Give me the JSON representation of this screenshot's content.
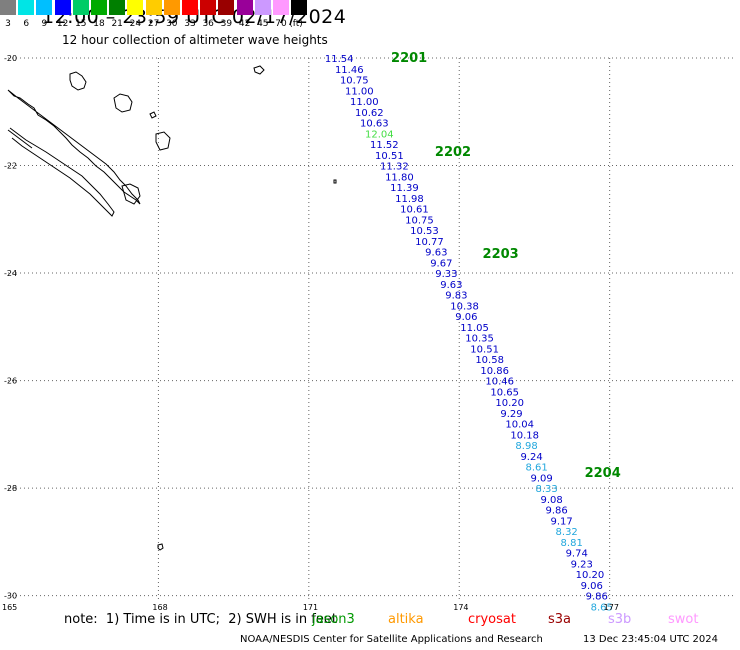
{
  "header": {
    "title": "12:00 – 23:59 UTC 02/17/2024",
    "subtitle": "12 hour collection of altimeter wave heights"
  },
  "color_scale": {
    "unit": "(ft)",
    "bins": [
      {
        "label": "3",
        "color": "#7f7f7f"
      },
      {
        "label": "6",
        "color": "#00e5e5"
      },
      {
        "label": "9",
        "color": "#00bfff"
      },
      {
        "label": "12",
        "color": "#0000ff"
      },
      {
        "label": "15",
        "color": "#00cc66"
      },
      {
        "label": "18",
        "color": "#00aa00"
      },
      {
        "label": "21",
        "color": "#007f00"
      },
      {
        "label": "24",
        "color": "#ffff00"
      },
      {
        "label": "27",
        "color": "#ffcc00"
      },
      {
        "label": "30",
        "color": "#ff9900"
      },
      {
        "label": "33",
        "color": "#ff0000"
      },
      {
        "label": "36",
        "color": "#cc0000"
      },
      {
        "label": "39",
        "color": "#990000"
      },
      {
        "label": "42",
        "color": "#990099"
      },
      {
        "label": "45",
        "color": "#cc99ff"
      },
      {
        "label": "70",
        "color": "#ff99ff"
      },
      {
        "label": "",
        "color": "#000000"
      }
    ]
  },
  "axes": {
    "lat_ticks": [
      "-20",
      "-22",
      "-24",
      "-26",
      "-28",
      "-30"
    ],
    "lon_ticks": [
      "165",
      "168",
      "171",
      "174",
      "177"
    ],
    "lon_range": [
      165,
      179.5
    ],
    "lat_range": [
      -20,
      -30.1
    ],
    "grid": true
  },
  "track": {
    "passes": [
      {
        "label": "2201",
        "lat": -20.0
      },
      {
        "label": "2202",
        "lat": -21.75
      },
      {
        "label": "2203",
        "lat": -23.65
      },
      {
        "label": "2204",
        "lat": -27.72
      }
    ],
    "points": [
      {
        "v": "11.54",
        "lon": 171.6,
        "lat": -20.0
      },
      {
        "v": "11.46",
        "lon": 171.8,
        "lat": -20.2
      },
      {
        "v": "10.75",
        "lon": 171.9,
        "lat": -20.4
      },
      {
        "v": "11.00",
        "lon": 172.0,
        "lat": -20.6
      },
      {
        "v": "11.00",
        "lon": 172.1,
        "lat": -20.8
      },
      {
        "v": "10.62",
        "lon": 172.2,
        "lat": -21.0
      },
      {
        "v": "10.63",
        "lon": 172.3,
        "lat": -21.2
      },
      {
        "v": "12.04",
        "lon": 172.4,
        "lat": -21.4
      },
      {
        "v": "11.52",
        "lon": 172.5,
        "lat": -21.6
      },
      {
        "v": "10.51",
        "lon": 172.6,
        "lat": -21.8
      },
      {
        "v": "11.32",
        "lon": 172.7,
        "lat": -22.0
      },
      {
        "v": "11.80",
        "lon": 172.8,
        "lat": -22.2
      },
      {
        "v": "11.39",
        "lon": 172.9,
        "lat": -22.4
      },
      {
        "v": "11.98",
        "lon": 173.0,
        "lat": -22.6
      },
      {
        "v": "10.61",
        "lon": 173.1,
        "lat": -22.8
      },
      {
        "v": "10.75",
        "lon": 173.2,
        "lat": -23.0
      },
      {
        "v": "10.53",
        "lon": 173.3,
        "lat": -23.2
      },
      {
        "v": "10.77",
        "lon": 173.4,
        "lat": -23.4
      },
      {
        "v": "9.63",
        "lon": 173.6,
        "lat": -23.6
      },
      {
        "v": "9.67",
        "lon": 173.7,
        "lat": -23.8
      },
      {
        "v": "9.33",
        "lon": 173.8,
        "lat": -24.0
      },
      {
        "v": "9.63",
        "lon": 173.9,
        "lat": -24.2
      },
      {
        "v": "9.83",
        "lon": 174.0,
        "lat": -24.4
      },
      {
        "v": "10.38",
        "lon": 174.1,
        "lat": -24.6
      },
      {
        "v": "9.06",
        "lon": 174.2,
        "lat": -24.8
      },
      {
        "v": "11.05",
        "lon": 174.3,
        "lat": -25.0
      },
      {
        "v": "10.35",
        "lon": 174.4,
        "lat": -25.2
      },
      {
        "v": "10.51",
        "lon": 174.5,
        "lat": -25.4
      },
      {
        "v": "10.58",
        "lon": 174.6,
        "lat": -25.6
      },
      {
        "v": "10.86",
        "lon": 174.7,
        "lat": -25.8
      },
      {
        "v": "10.46",
        "lon": 174.8,
        "lat": -26.0
      },
      {
        "v": "10.65",
        "lon": 174.9,
        "lat": -26.2
      },
      {
        "v": "10.20",
        "lon": 175.0,
        "lat": -26.4
      },
      {
        "v": "9.29",
        "lon": 175.1,
        "lat": -26.6
      },
      {
        "v": "10.04",
        "lon": 175.2,
        "lat": -26.8
      },
      {
        "v": "10.18",
        "lon": 175.3,
        "lat": -27.0
      },
      {
        "v": "8.98",
        "lon": 175.4,
        "lat": -27.2
      },
      {
        "v": "9.24",
        "lon": 175.5,
        "lat": -27.4
      },
      {
        "v": "8.61",
        "lon": 175.6,
        "lat": -27.6
      },
      {
        "v": "9.09",
        "lon": 175.7,
        "lat": -27.8
      },
      {
        "v": "8.33",
        "lon": 175.8,
        "lat": -28.0
      },
      {
        "v": "9.08",
        "lon": 175.9,
        "lat": -28.2
      },
      {
        "v": "9.86",
        "lon": 176.0,
        "lat": -28.4
      },
      {
        "v": "9.17",
        "lon": 176.1,
        "lat": -28.6
      },
      {
        "v": "8.32",
        "lon": 176.2,
        "lat": -28.8
      },
      {
        "v": "8.81",
        "lon": 176.3,
        "lat": -29.0
      },
      {
        "v": "9.74",
        "lon": 176.4,
        "lat": -29.2
      },
      {
        "v": "9.23",
        "lon": 176.5,
        "lat": -29.4
      },
      {
        "v": "10.20",
        "lon": 176.6,
        "lat": -29.6
      },
      {
        "v": "9.06",
        "lon": 176.7,
        "lat": -29.8
      },
      {
        "v": "9.86",
        "lon": 176.8,
        "lat": -30.0
      },
      {
        "v": "8.65",
        "lon": 176.9,
        "lat": -30.2
      }
    ]
  },
  "footer": {
    "note": "note:  1) Time is in UTC;  2) SWH is in feet",
    "satellites": [
      {
        "name": "jason3",
        "color": "#009900"
      },
      {
        "name": "altika",
        "color": "#ff9900"
      },
      {
        "name": "cryosat",
        "color": "#ff0000"
      },
      {
        "name": "s3a",
        "color": "#990000"
      },
      {
        "name": "s3b",
        "color": "#cc99ff"
      },
      {
        "name": "swot",
        "color": "#ff99ff"
      }
    ],
    "credit": "NOAA/NESDIS Center for Satellite Applications and Research",
    "timestamp": "13 Dec 23:45:04 UTC 2024"
  }
}
